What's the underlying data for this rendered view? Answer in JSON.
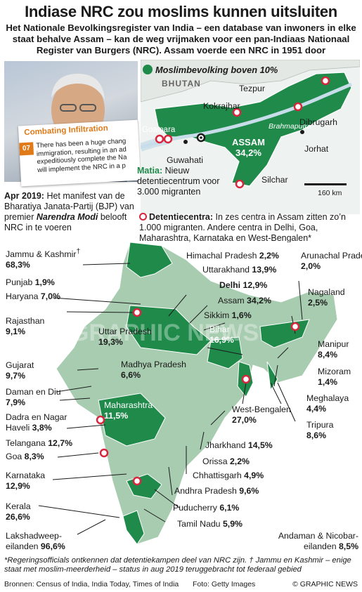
{
  "header": {
    "title": "Indiase NRC zou moslims kunnen uitsluiten",
    "subtitle": "Het Nationale Bevolkingsregister van India  – een database van inwoners in elke staat behalve Assam – kan de weg vrijmaken voor een pan-Indiaas Nationaal Register van Burgers (NRC). Assam voerde een NRC in 1951 door"
  },
  "photo_card": {
    "title": "Combating Infiltration",
    "number": "07",
    "lines": [
      "There has been a huge chang",
      "immigration, resulting in an ad",
      "expeditiously complete the Na",
      "will implement the NRC in a p"
    ]
  },
  "manifesto": {
    "date": "Apr 2019:",
    "text1": " Het manifest van de Bharatiya Janata-Partij (BJP) van premier ",
    "name": "Narendra Modi",
    "text2": " belooft NRC in te voeren"
  },
  "assam_map": {
    "legend": "Moslimbevolking boven 10%",
    "country": "BHUTAN",
    "river": "Brahmaputra",
    "state": "ASSAM",
    "state_pct": "34,2%",
    "places": [
      "Kokrajhar",
      "Tezpur",
      "Goalpara",
      "Guwahati",
      "Dibrugarh",
      "Jorhat",
      "Silchar"
    ],
    "matia_name": "Matia:",
    "matia_text": " Nieuw detentiecentrum voor 3.000 migranten",
    "scale": "160 km"
  },
  "detention": {
    "label": "Detentiecentra:",
    "text": " In zes centra in Assam zitten zo’n 1.000 migranten. Andere centra in Delhi, Goa, Maharashtra, Karnataka en West-Bengalen*"
  },
  "states": [
    {
      "name": "Jammu & Kashmir",
      "mark": "†",
      "value": "68,3%"
    },
    {
      "name": "Punjab",
      "value": "1,9%"
    },
    {
      "name": "Haryana",
      "value": "7,0%"
    },
    {
      "name": "Rajasthan",
      "value": "9,1%"
    },
    {
      "name": "Gujarat",
      "value": "9,7%"
    },
    {
      "name": "Daman en Diu",
      "value": "7,9%"
    },
    {
      "name": "Dadra en Nagar Haveli",
      "value": "3,8%"
    },
    {
      "name": "Telangana",
      "value": "12,7%"
    },
    {
      "name": "Goa",
      "value": "8,3%"
    },
    {
      "name": "Karnataka",
      "value": "12,9%"
    },
    {
      "name": "Kerala",
      "value": "26,6%"
    },
    {
      "name": "Lakshadweep-eilanden",
      "value": "96,6%"
    },
    {
      "name": "Himachal Pradesh",
      "value": "2,2%"
    },
    {
      "name": "Uttarakhand",
      "value": "13,9%"
    },
    {
      "name": "Delhi",
      "value": "12,9%"
    },
    {
      "name": "Assam",
      "value": "34,2%"
    },
    {
      "name": "Sikkim",
      "value": "1,6%"
    },
    {
      "name": "Bihar",
      "value": "16,9%"
    },
    {
      "name": "Uttar Pradesh",
      "value": "19,3%"
    },
    {
      "name": "Madhya Pradesh",
      "value": "6,6%"
    },
    {
      "name": "Maharashtra",
      "value": "11,5%"
    },
    {
      "name": "West-Bengalen",
      "value": "27,0%"
    },
    {
      "name": "Jharkhand",
      "value": "14,5%"
    },
    {
      "name": "Orissa",
      "value": "2,2%"
    },
    {
      "name": "Chhattisgarh",
      "value": "4,9%"
    },
    {
      "name": "Andhra Pradesh",
      "value": "9,6%"
    },
    {
      "name": "Puducherry",
      "value": "6,1%"
    },
    {
      "name": "Tamil Nadu",
      "value": "5,9%"
    },
    {
      "name": "Andaman & Nicobar-eilanden",
      "value": "8,5%"
    },
    {
      "name": "Arunachal Pradesh",
      "value": "2,0%"
    },
    {
      "name": "Nagaland",
      "value": "2,5%"
    },
    {
      "name": "Manipur",
      "value": "8,4%"
    },
    {
      "name": "Mizoram",
      "value": "1,4%"
    },
    {
      "name": "Meghalaya",
      "value": "4,4%"
    },
    {
      "name": "Tripura",
      "value": "8,6%"
    }
  ],
  "footer": {
    "note": "*Regeringsofficials ontkennen dat detentiekampen deel van NRC zijn. † Jammu en Kashmir – enige staat met moslim-meerderheid – status in aug 2019 teruggebracht tot federaal gebied",
    "source": "Bronnen: Census of India, India Today, Times of India",
    "photo": "Foto: Getty Images",
    "copyright": "© GRAPHIC NEWS"
  },
  "watermark": "GRAPHIC NEWS",
  "colors": {
    "majority": "#1f8a4a",
    "minority": "#a8ccb0",
    "water": "#d4e4ee",
    "marker": "#d7263d",
    "accent": "#e07a18"
  }
}
